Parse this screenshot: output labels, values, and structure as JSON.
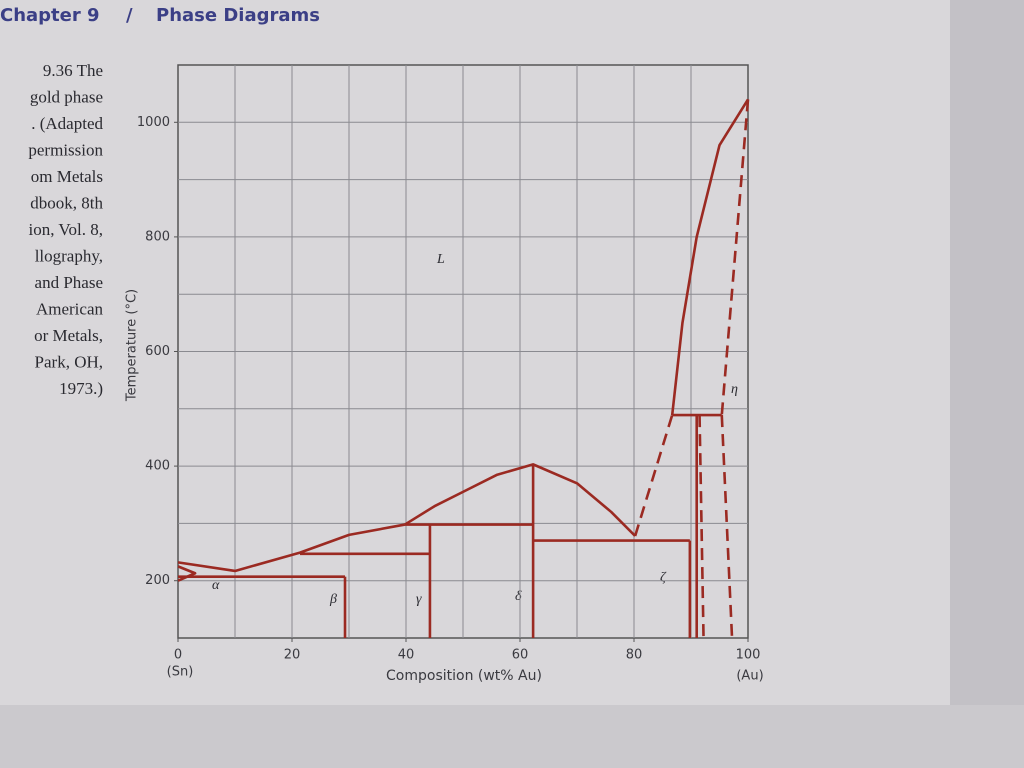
{
  "page": {
    "chapter": "Chapter 9",
    "separator": "/",
    "section": "Phase Diagrams",
    "caption": [
      "9.36  The",
      "gold phase",
      ". (Adapted",
      "permission",
      "om Metals",
      "dbook, 8th",
      "ion, Vol. 8,",
      "llography,",
      "and Phase",
      "American",
      "or Metals,",
      "Park, OH,",
      "1973.)"
    ]
  },
  "chart_data": {
    "type": "phase",
    "xlabel": "Composition (wt% Au)",
    "ylabel": "Temperature (°C)",
    "x_end_labels": [
      "(Sn)",
      "(Au)"
    ],
    "annotations": [
      "L",
      "α",
      "β",
      "γ",
      "δ",
      "ζ",
      "η"
    ],
    "xlim": [
      0,
      100
    ],
    "ylim": [
      100,
      1100
    ],
    "xticks": [
      0,
      20,
      40,
      60,
      80,
      100
    ],
    "yticks": [
      200,
      400,
      600,
      800,
      1000
    ],
    "x_grid": [
      10,
      20,
      30,
      40,
      50,
      60,
      70,
      80,
      90
    ],
    "y_grid": [
      200,
      300,
      400,
      500,
      600,
      700,
      800,
      900,
      1000
    ],
    "grid": true,
    "color": "#9b2a22",
    "series": [
      {
        "x": [
          0,
          10,
          21.4,
          30,
          39.8
        ],
        "values": [
          232,
          217,
          249,
          280,
          298
        ]
      },
      {
        "x": [
          39.8,
          45,
          50,
          56,
          62.3,
          70,
          76,
          80.2
        ],
        "values": [
          298,
          330,
          355,
          385,
          403,
          370,
          320,
          278
        ]
      },
      {
        "x": [
          86.7,
          88.5,
          91,
          95,
          100
        ],
        "values": [
          489,
          650,
          800,
          960,
          1040
        ]
      },
      {
        "x": [
          80.2,
          86.7
        ],
        "values": [
          278,
          489
        ],
        "dashed": true
      },
      {
        "x": [
          100,
          95.4
        ],
        "values": [
          1040,
          489
        ],
        "dashed": true
      },
      {
        "x": [
          95.4,
          97.2
        ],
        "values": [
          489,
          100
        ],
        "dashed": true
      },
      {
        "x": [
          91.5,
          92.2
        ],
        "values": [
          489,
          100
        ],
        "dashed": true
      },
      {
        "x": [
          0,
          29.3
        ],
        "values": [
          207,
          207
        ]
      },
      {
        "x": [
          21.4,
          44.2
        ],
        "values": [
          247,
          247
        ]
      },
      {
        "x": [
          39.8,
          62.3
        ],
        "values": [
          298,
          298
        ]
      },
      {
        "x": [
          62.3,
          89.8
        ],
        "values": [
          270,
          270
        ]
      },
      {
        "x": [
          86.7,
          95.4
        ],
        "values": [
          489,
          489
        ]
      },
      {
        "x": [
          29.3,
          29.3
        ],
        "values": [
          207,
          100
        ]
      },
      {
        "x": [
          44.2,
          44.2
        ],
        "values": [
          298,
          100
        ]
      },
      {
        "x": [
          62.3,
          62.3
        ],
        "values": [
          403,
          100
        ]
      },
      {
        "x": [
          89.8,
          89.8
        ],
        "values": [
          270,
          100
        ]
      },
      {
        "x": [
          91,
          91
        ],
        "values": [
          489,
          100
        ]
      },
      {
        "x": [
          0,
          3,
          0
        ],
        "values": [
          200,
          213,
          225
        ]
      }
    ]
  }
}
